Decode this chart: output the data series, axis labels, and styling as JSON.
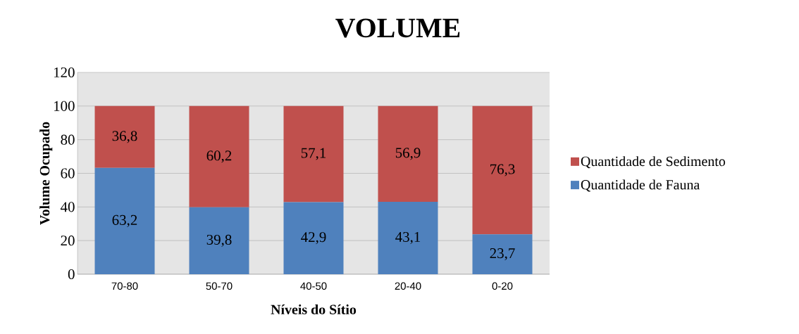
{
  "chart_data": {
    "type": "bar",
    "title": "VOLUME",
    "xlabel": "Níveis do Sítio",
    "ylabel": "Volume Ocupado",
    "categories": [
      "70-80",
      "50-70",
      "40-50",
      "20-40",
      "0-20"
    ],
    "stacked": true,
    "series": [
      {
        "name": "Quantidade de Fauna",
        "color": "#4f81bd",
        "values": [
          63.2,
          39.8,
          42.9,
          43.1,
          23.7
        ],
        "value_labels": [
          "63,2",
          "39,8",
          "42,9",
          "43,1",
          "23,7"
        ]
      },
      {
        "name": "Quantidade de Sedimento",
        "color": "#c0504d",
        "values": [
          36.8,
          60.2,
          57.1,
          56.9,
          76.3
        ],
        "value_labels": [
          "36,8",
          "60,2",
          "57,1",
          "56,9",
          "76,3"
        ]
      }
    ],
    "ylim": [
      0,
      120
    ],
    "yticks": [
      0,
      20,
      40,
      60,
      80,
      100,
      120
    ],
    "grid": "y",
    "legend": "right"
  }
}
